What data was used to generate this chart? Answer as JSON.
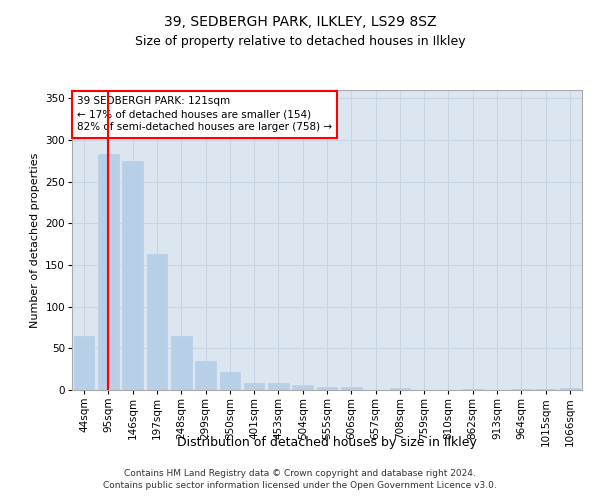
{
  "title": "39, SEDBERGH PARK, ILKLEY, LS29 8SZ",
  "subtitle": "Size of property relative to detached houses in Ilkley",
  "xlabel": "Distribution of detached houses by size in Ilkley",
  "ylabel": "Number of detached properties",
  "categories": [
    "44sqm",
    "95sqm",
    "146sqm",
    "197sqm",
    "248sqm",
    "299sqm",
    "350sqm",
    "401sqm",
    "453sqm",
    "504sqm",
    "555sqm",
    "606sqm",
    "657sqm",
    "708sqm",
    "759sqm",
    "810sqm",
    "862sqm",
    "913sqm",
    "964sqm",
    "1015sqm",
    "1066sqm"
  ],
  "values": [
    65,
    283,
    275,
    163,
    65,
    35,
    22,
    8,
    9,
    6,
    4,
    4,
    0,
    2,
    0,
    0,
    1,
    0,
    1,
    1,
    2
  ],
  "bar_color": "#b8cfe8",
  "bar_edge_color": "#b8cfe8",
  "annotation_box_text": [
    "39 SEDBERGH PARK: 121sqm",
    "← 17% of detached houses are smaller (154)",
    "82% of semi-detached houses are larger (758) →"
  ],
  "annotation_box_color": "white",
  "annotation_box_edge_color": "red",
  "vline_x_index": 1,
  "vline_color": "red",
  "grid_color": "#c8d4e4",
  "background_color": "#dce6f0",
  "ylim": [
    0,
    360
  ],
  "yticks": [
    0,
    50,
    100,
    150,
    200,
    250,
    300,
    350
  ],
  "footer_line1": "Contains HM Land Registry data © Crown copyright and database right 2024.",
  "footer_line2": "Contains public sector information licensed under the Open Government Licence v3.0.",
  "title_fontsize": 10,
  "subtitle_fontsize": 9,
  "xlabel_fontsize": 9,
  "ylabel_fontsize": 8,
  "tick_fontsize": 7.5,
  "footer_fontsize": 6.5,
  "ann_fontsize": 7.5
}
